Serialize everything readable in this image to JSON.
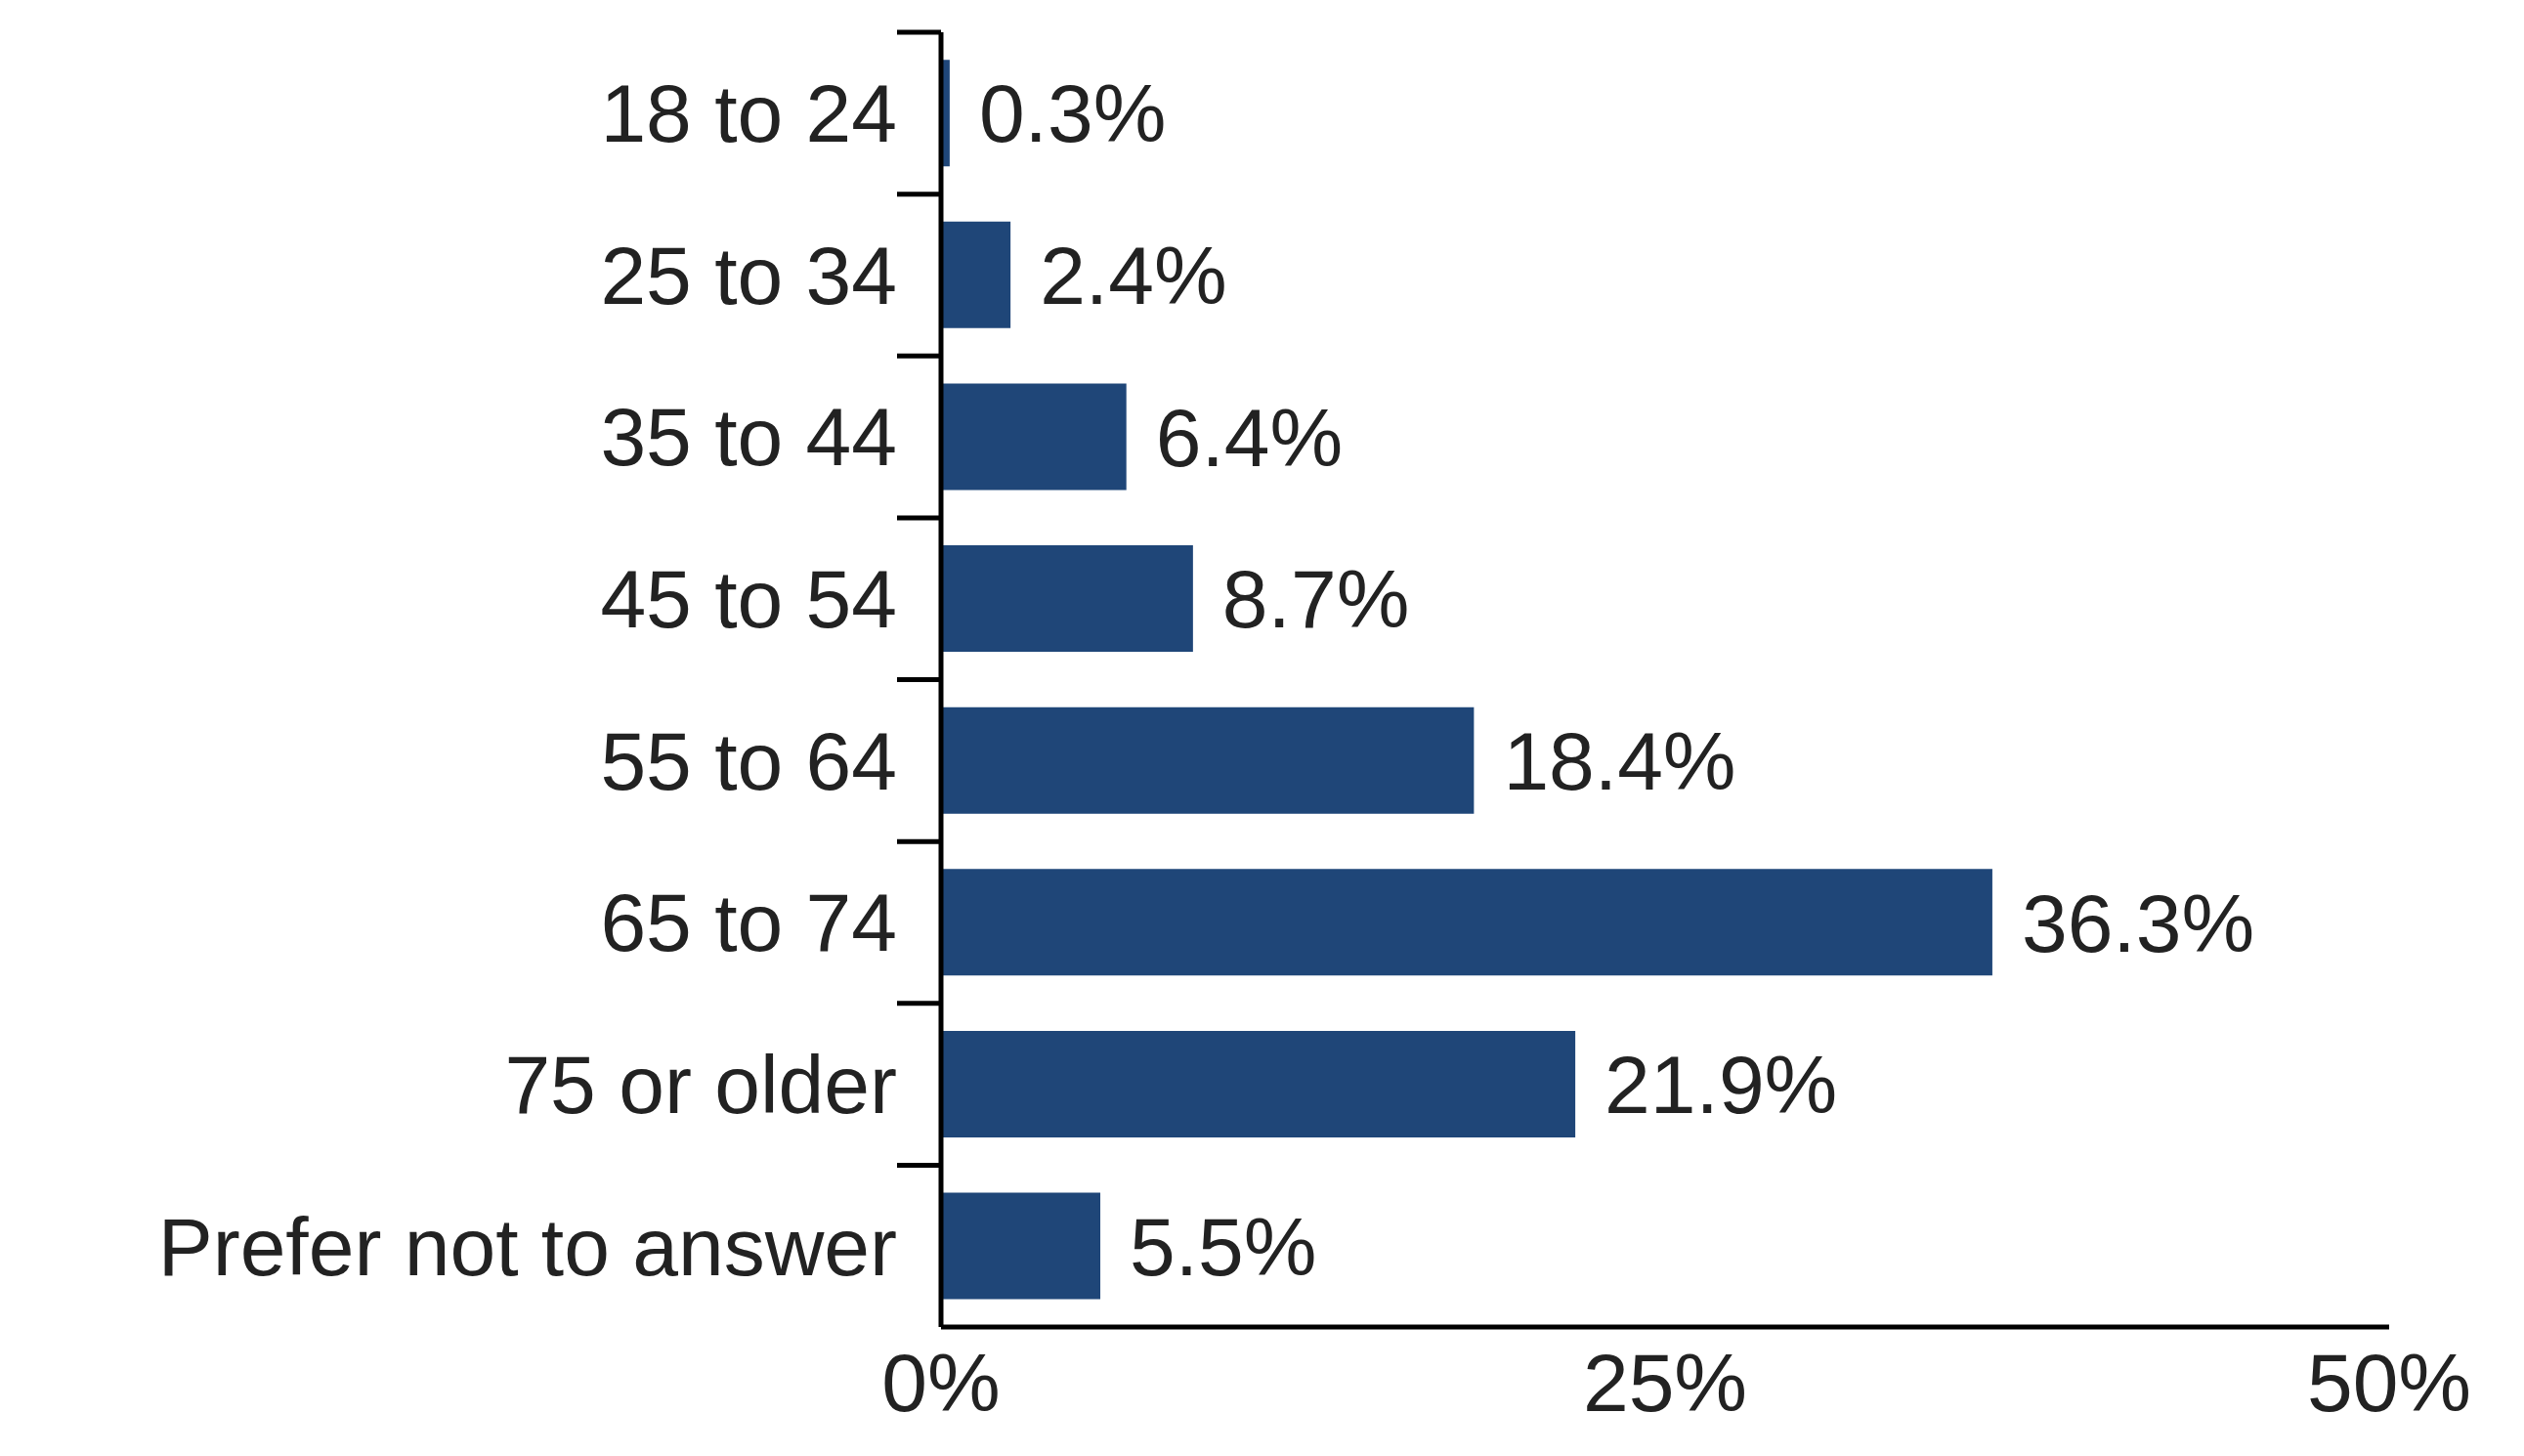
{
  "chart_data": {
    "type": "bar",
    "orientation": "horizontal",
    "categories": [
      "18 to 24",
      "25 to 34",
      "35 to 44",
      "45 to 54",
      "55 to 64",
      "65 to 74",
      "75 or older",
      "Prefer not to answer"
    ],
    "values": [
      0.3,
      2.4,
      6.4,
      8.7,
      18.4,
      36.3,
      21.9,
      5.5
    ],
    "value_labels": [
      "0.3%",
      "2.4%",
      "6.4%",
      "8.7%",
      "18.4%",
      "36.3%",
      "21.9%",
      "5.5%"
    ],
    "color": "#1f4678",
    "xlim": [
      0,
      50
    ],
    "xticks": [
      {
        "value": 0,
        "label": "0%"
      },
      {
        "value": 25,
        "label": "25%"
      },
      {
        "value": 50,
        "label": "50%"
      }
    ],
    "grid": false,
    "legend": false
  }
}
